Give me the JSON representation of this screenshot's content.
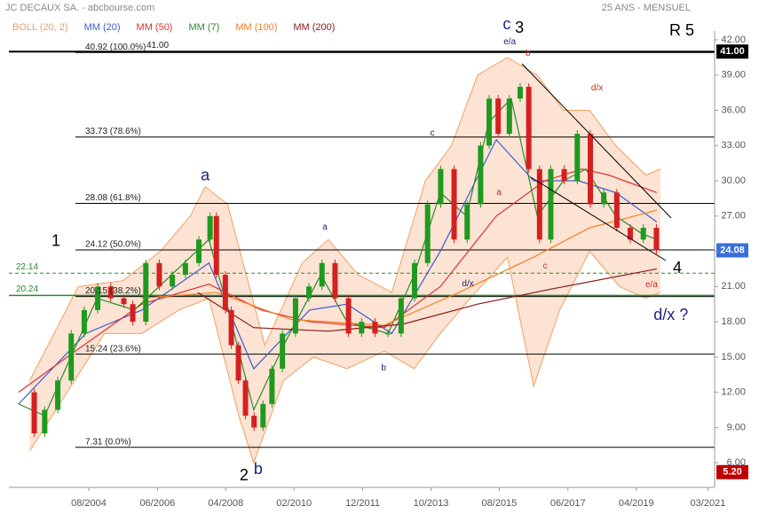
{
  "chart_data": {
    "type": "candlestick",
    "title": "JC DECAUX SA. - abcbourse.com",
    "subtitle": "25 ANS - MENSUEL",
    "xlim": [
      2002.44,
      2021.35
    ],
    "ylim": [
      3.9,
      42.75
    ],
    "xticks": [
      {
        "value": 2004.58,
        "label": "08/2004"
      },
      {
        "value": 2006.42,
        "label": "06/2006"
      },
      {
        "value": 2008.25,
        "label": "04/2008"
      },
      {
        "value": 2010.08,
        "label": "02/2010"
      },
      {
        "value": 2011.92,
        "label": "12/2011"
      },
      {
        "value": 2013.75,
        "label": "10/2013"
      },
      {
        "value": 2015.58,
        "label": "08/2015"
      },
      {
        "value": 2017.42,
        "label": "06/2017"
      },
      {
        "value": 2019.25,
        "label": "04/2019"
      },
      {
        "value": 2021.17,
        "label": "03/2021"
      }
    ],
    "yticks": [
      {
        "value": 6,
        "label": "6.00"
      },
      {
        "value": 9,
        "label": "9.00"
      },
      {
        "value": 12,
        "label": "12.00"
      },
      {
        "value": 15,
        "label": "15.00"
      },
      {
        "value": 18,
        "label": "18.00"
      },
      {
        "value": 21,
        "label": "21.00"
      },
      {
        "value": 24,
        "label": "24.00"
      },
      {
        "value": 27,
        "label": "27.00"
      },
      {
        "value": 30,
        "label": "30.00"
      },
      {
        "value": 33,
        "label": "33.00"
      },
      {
        "value": 36,
        "label": "36.00"
      },
      {
        "value": 39,
        "label": "39.00"
      },
      {
        "value": 42,
        "label": "42.00"
      }
    ],
    "price": {
      "up_color": "#1f9a1f",
      "down_color": "#d42020",
      "x": [
        2002.69,
        2003.12,
        2003.4,
        2003.75,
        2004.11,
        2004.46,
        2004.82,
        2005.17,
        2005.52,
        2005.76,
        2006.11,
        2006.47,
        2006.82,
        2007.17,
        2007.53,
        2007.83,
        2008.0,
        2008.24,
        2008.4,
        2008.59,
        2008.78,
        2009.01,
        2009.25,
        2009.49,
        2009.77,
        2010.12,
        2010.48,
        2010.83,
        2011.18,
        2011.54,
        2011.89,
        2012.25,
        2012.6,
        2012.95,
        2013.31,
        2013.66,
        2014.01,
        2014.37,
        2014.72,
        2015.08,
        2015.31,
        2015.55,
        2015.85,
        2016.14,
        2016.37,
        2016.66,
        2016.96,
        2017.32,
        2017.67,
        2018.02,
        2018.38,
        2018.73,
        2019.09,
        2019.44,
        2019.79
      ],
      "values": [
        12,
        8.5,
        10.5,
        13,
        17,
        19,
        21,
        20,
        19.5,
        18,
        23,
        21,
        22,
        23,
        25,
        27,
        22,
        19,
        16,
        13,
        10,
        9,
        11,
        14,
        17,
        20,
        21,
        23,
        20,
        17,
        18,
        17,
        17,
        20,
        23,
        28,
        31,
        25,
        28,
        33,
        37,
        34,
        37,
        38,
        31,
        25,
        31,
        30,
        34,
        28,
        29,
        26,
        25,
        26,
        24.08
      ]
    },
    "bollinger": {
      "name": "BOLL (20, 2)",
      "color": "#f0a060",
      "fill": "#fde3d3",
      "upper_x": [
        2003,
        2004.3,
        2005.5,
        2006.5,
        2007.3,
        2007.7,
        2008.3,
        2009.3,
        2010.3,
        2011,
        2011.8,
        2012.7,
        2013.6,
        2014.3,
        2015,
        2015.8,
        2016.6,
        2017.3,
        2018,
        2018.7,
        2019.5,
        2019.9
      ],
      "upper": [
        13,
        21,
        21.5,
        24,
        27,
        29.5,
        28,
        16,
        23,
        25,
        22,
        20.5,
        30,
        33,
        39,
        40.5,
        39,
        36,
        36,
        33,
        30.5,
        31
      ],
      "lower_x": [
        2003,
        2004,
        2005,
        2006,
        2007,
        2007.8,
        2008.6,
        2009,
        2009.8,
        2010.6,
        2011.5,
        2012.5,
        2013.3,
        2014,
        2014.8,
        2015.8,
        2016.5,
        2017.2,
        2018,
        2018.8,
        2019.5,
        2019.9
      ],
      "lower": [
        7,
        12,
        17,
        17,
        19,
        20,
        10,
        6,
        13,
        15,
        14,
        15.5,
        14,
        17,
        20,
        23.5,
        12.5,
        19,
        24,
        21,
        20,
        20.5
      ]
    },
    "series": [
      {
        "name": "MM (20)",
        "color": "#3b5bd6",
        "x": [
          2002.7,
          2004.5,
          2006,
          2007.8,
          2009,
          2010.5,
          2011.5,
          2012.7,
          2014,
          2015.5,
          2016.5,
          2017.7,
          2018.7,
          2019.8
        ],
        "values": [
          11,
          17,
          19,
          23,
          14,
          19,
          19.5,
          17,
          24,
          33.5,
          30,
          30,
          29,
          26.5
        ]
      },
      {
        "name": "MM (50)",
        "color": "#e03030",
        "x": [
          2002.7,
          2004,
          2006,
          2007.8,
          2009.2,
          2010.5,
          2012.5,
          2014,
          2015.5,
          2016.8,
          2017.8,
          2018.5,
          2019.8
        ],
        "values": [
          12,
          15,
          19.5,
          21.2,
          19,
          18,
          17.5,
          21,
          27,
          30,
          31,
          30.5,
          29
        ]
      },
      {
        "name": "MM (7)",
        "color": "#2a8a2a",
        "x": [
          2002.7,
          2003.4,
          2004.1,
          2004.8,
          2005.8,
          2006.8,
          2007.8,
          2008.4,
          2009.0,
          2009.8,
          2010.8,
          2011.5,
          2012.6,
          2013.3,
          2014.0,
          2014.7,
          2015.3,
          2015.9,
          2016.6,
          2017.3,
          2017.9,
          2018.7,
          2019.4,
          2019.8
        ],
        "values": [
          11,
          10,
          15,
          20,
          19,
          22,
          25,
          18,
          10.5,
          16,
          22,
          18,
          17,
          22,
          29,
          27,
          35,
          37,
          27,
          30,
          31,
          27,
          25.5,
          25
        ]
      },
      {
        "name": "MM (100)",
        "color": "#f08020",
        "x": [
          2006,
          2008,
          2010,
          2012.5,
          2014.5,
          2016.5,
          2018,
          2019.8
        ],
        "values": [
          20,
          20.5,
          18.2,
          17.7,
          20.5,
          23.5,
          26,
          27.5
        ]
      },
      {
        "name": "MM (200)",
        "color": "#8b1a1a",
        "x": [
          2007.5,
          2009,
          2011,
          2013,
          2015,
          2017,
          2019.8
        ],
        "values": [
          20.5,
          17.5,
          17.2,
          17.8,
          19.5,
          20.8,
          22.5
        ]
      }
    ],
    "fib_levels": [
      {
        "value": 40.92,
        "label": "40.92 (100.0%)"
      },
      {
        "value": 33.73,
        "label": "33.73 (78.6%)"
      },
      {
        "value": 28.08,
        "label": "28.08 (61.8%)"
      },
      {
        "value": 24.12,
        "label": "24.12 (50.0%)"
      },
      {
        "value": 20.15,
        "label": "20.15 (38.2%)"
      },
      {
        "value": 15.24,
        "label": "15.24 (23.6%)"
      },
      {
        "value": 7.31,
        "label": "7.31  (0.0%)"
      }
    ],
    "resistance": {
      "value": 41,
      "label": "41.00"
    },
    "support_lines": [
      {
        "value": 22.14,
        "label": "22.14",
        "color": "#2a8a2a",
        "dashed": true
      },
      {
        "value": 20.24,
        "label": "20.24",
        "color": "#2a8a2a",
        "dashed": false
      }
    ],
    "last_price": {
      "value": 24.08,
      "label": "24.08",
      "color": "#3a6fd8"
    },
    "volume_box": {
      "value": 5.2,
      "label": "5.20",
      "color": "#c00000"
    },
    "annotations": [
      {
        "text": "1",
        "x": 2003.7,
        "y": 24.8,
        "color": "#000000",
        "size": "large"
      },
      {
        "text": "2",
        "x": 2008.74,
        "y": 4.87,
        "color": "#000000",
        "size": "large"
      },
      {
        "text": "b",
        "x": 2009.12,
        "y": 5.4,
        "color": "#1a237e",
        "size": "large"
      },
      {
        "text": "a",
        "x": 2007.7,
        "y": 30.4,
        "color": "#1a237e",
        "size": "large"
      },
      {
        "text": "c",
        "x": 2015.78,
        "y": 43.27,
        "color": "#1a237e",
        "size": "large"
      },
      {
        "text": "3",
        "x": 2016.12,
        "y": 42.96,
        "color": "#000000",
        "size": "large"
      },
      {
        "text": "4",
        "x": 2020.35,
        "y": 22.52,
        "color": "#000000",
        "size": "large"
      },
      {
        "text": "R 5",
        "x": 2020.47,
        "y": 42.74,
        "color": "#000000",
        "size": "large"
      },
      {
        "text": "d/x ?",
        "x": 2020.18,
        "y": 18.5,
        "color": "#1a237e",
        "size": "large"
      },
      {
        "text": "e/a",
        "x": 2015.86,
        "y": 41.8,
        "color": "#1a237e",
        "size": "small"
      },
      {
        "text": "b",
        "x": 2016.35,
        "y": 40.85,
        "color": "#c62828",
        "size": "small"
      },
      {
        "text": "d/x",
        "x": 2018.2,
        "y": 37.9,
        "color": "#c62828",
        "size": "small"
      },
      {
        "text": "c",
        "x": 2013.79,
        "y": 34.06,
        "color": "#1a237e",
        "size": "small"
      },
      {
        "text": "a",
        "x": 2015.57,
        "y": 29.0,
        "color": "#c62828",
        "size": "small"
      },
      {
        "text": "a",
        "x": 2010.91,
        "y": 26.07,
        "color": "#1a237e",
        "size": "small"
      },
      {
        "text": "d/x",
        "x": 2014.74,
        "y": 21.24,
        "color": "#1a237e",
        "size": "small"
      },
      {
        "text": "c",
        "x": 2016.81,
        "y": 22.75,
        "color": "#c62828",
        "size": "small"
      },
      {
        "text": "e/a",
        "x": 2019.66,
        "y": 21.16,
        "color": "#c62828",
        "size": "small"
      },
      {
        "text": "b",
        "x": 2012.48,
        "y": 14.07,
        "color": "#1a237e",
        "size": "small"
      }
    ]
  }
}
